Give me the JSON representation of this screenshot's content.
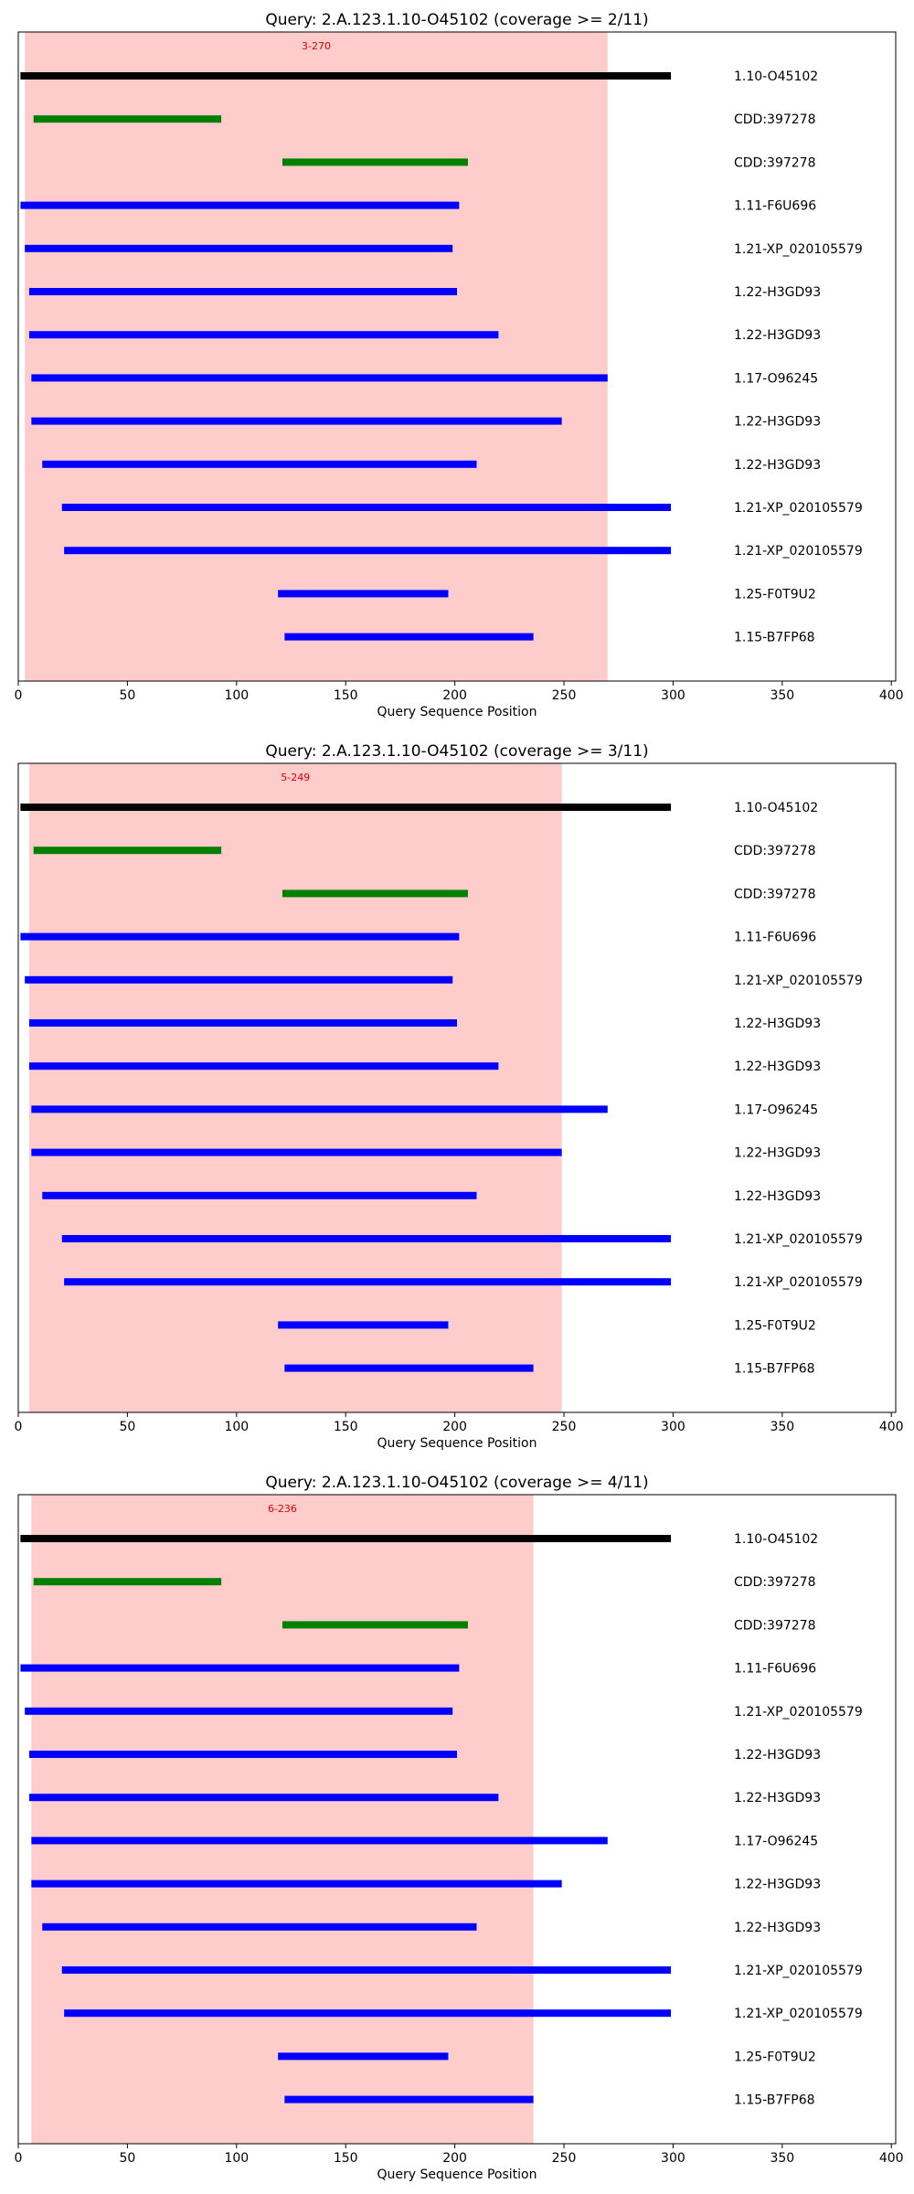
{
  "chart_data": [
    {
      "type": "bar",
      "orientation": "horizontal-range",
      "title": "Query: 2.A.123.1.10-O45102 (coverage >= 2/11)",
      "xlabel": "Query Sequence Position",
      "ylabel": "",
      "xlim": [
        0,
        402
      ],
      "xticks": [
        0,
        50,
        100,
        150,
        200,
        250,
        300,
        350,
        400
      ],
      "highlight": {
        "start": 3,
        "end": 270,
        "label": "3-270",
        "color": "#ff9999"
      },
      "segments": [
        {
          "label": "1.10-O45102",
          "start": 1,
          "end": 299,
          "color": "#000000"
        },
        {
          "label": "CDD:397278",
          "start": 7,
          "end": 93,
          "color": "#008000"
        },
        {
          "label": "CDD:397278",
          "start": 121,
          "end": 206,
          "color": "#008000"
        },
        {
          "label": "1.11-F6U696",
          "start": 1,
          "end": 202,
          "color": "#0000ff"
        },
        {
          "label": "1.21-XP_020105579",
          "start": 3,
          "end": 199,
          "color": "#0000ff"
        },
        {
          "label": "1.22-H3GD93",
          "start": 5,
          "end": 201,
          "color": "#0000ff"
        },
        {
          "label": "1.22-H3GD93",
          "start": 5,
          "end": 220,
          "color": "#0000ff"
        },
        {
          "label": "1.17-O96245",
          "start": 6,
          "end": 270,
          "color": "#0000ff"
        },
        {
          "label": "1.22-H3GD93",
          "start": 6,
          "end": 249,
          "color": "#0000ff"
        },
        {
          "label": "1.22-H3GD93",
          "start": 11,
          "end": 210,
          "color": "#0000ff"
        },
        {
          "label": "1.21-XP_020105579",
          "start": 20,
          "end": 299,
          "color": "#0000ff"
        },
        {
          "label": "1.21-XP_020105579",
          "start": 21,
          "end": 299,
          "color": "#0000ff"
        },
        {
          "label": "1.25-F0T9U2",
          "start": 119,
          "end": 197,
          "color": "#0000ff"
        },
        {
          "label": "1.15-B7FP68",
          "start": 122,
          "end": 236,
          "color": "#0000ff"
        }
      ]
    },
    {
      "type": "bar",
      "orientation": "horizontal-range",
      "title": "Query: 2.A.123.1.10-O45102 (coverage >= 3/11)",
      "xlabel": "Query Sequence Position",
      "ylabel": "",
      "xlim": [
        0,
        402
      ],
      "xticks": [
        0,
        50,
        100,
        150,
        200,
        250,
        300,
        350,
        400
      ],
      "highlight": {
        "start": 5,
        "end": 249,
        "label": "5-249",
        "color": "#ff9999"
      },
      "segments": [
        {
          "label": "1.10-O45102",
          "start": 1,
          "end": 299,
          "color": "#000000"
        },
        {
          "label": "CDD:397278",
          "start": 7,
          "end": 93,
          "color": "#008000"
        },
        {
          "label": "CDD:397278",
          "start": 121,
          "end": 206,
          "color": "#008000"
        },
        {
          "label": "1.11-F6U696",
          "start": 1,
          "end": 202,
          "color": "#0000ff"
        },
        {
          "label": "1.21-XP_020105579",
          "start": 3,
          "end": 199,
          "color": "#0000ff"
        },
        {
          "label": "1.22-H3GD93",
          "start": 5,
          "end": 201,
          "color": "#0000ff"
        },
        {
          "label": "1.22-H3GD93",
          "start": 5,
          "end": 220,
          "color": "#0000ff"
        },
        {
          "label": "1.17-O96245",
          "start": 6,
          "end": 270,
          "color": "#0000ff"
        },
        {
          "label": "1.22-H3GD93",
          "start": 6,
          "end": 249,
          "color": "#0000ff"
        },
        {
          "label": "1.22-H3GD93",
          "start": 11,
          "end": 210,
          "color": "#0000ff"
        },
        {
          "label": "1.21-XP_020105579",
          "start": 20,
          "end": 299,
          "color": "#0000ff"
        },
        {
          "label": "1.21-XP_020105579",
          "start": 21,
          "end": 299,
          "color": "#0000ff"
        },
        {
          "label": "1.25-F0T9U2",
          "start": 119,
          "end": 197,
          "color": "#0000ff"
        },
        {
          "label": "1.15-B7FP68",
          "start": 122,
          "end": 236,
          "color": "#0000ff"
        }
      ]
    },
    {
      "type": "bar",
      "orientation": "horizontal-range",
      "title": "Query: 2.A.123.1.10-O45102 (coverage >= 4/11)",
      "xlabel": "Query Sequence Position",
      "ylabel": "",
      "xlim": [
        0,
        402
      ],
      "xticks": [
        0,
        50,
        100,
        150,
        200,
        250,
        300,
        350,
        400
      ],
      "highlight": {
        "start": 6,
        "end": 236,
        "label": "6-236",
        "color": "#ff9999"
      },
      "segments": [
        {
          "label": "1.10-O45102",
          "start": 1,
          "end": 299,
          "color": "#000000"
        },
        {
          "label": "CDD:397278",
          "start": 7,
          "end": 93,
          "color": "#008000"
        },
        {
          "label": "CDD:397278",
          "start": 121,
          "end": 206,
          "color": "#008000"
        },
        {
          "label": "1.11-F6U696",
          "start": 1,
          "end": 202,
          "color": "#0000ff"
        },
        {
          "label": "1.21-XP_020105579",
          "start": 3,
          "end": 199,
          "color": "#0000ff"
        },
        {
          "label": "1.22-H3GD93",
          "start": 5,
          "end": 201,
          "color": "#0000ff"
        },
        {
          "label": "1.22-H3GD93",
          "start": 5,
          "end": 220,
          "color": "#0000ff"
        },
        {
          "label": "1.17-O96245",
          "start": 6,
          "end": 270,
          "color": "#0000ff"
        },
        {
          "label": "1.22-H3GD93",
          "start": 6,
          "end": 249,
          "color": "#0000ff"
        },
        {
          "label": "1.22-H3GD93",
          "start": 11,
          "end": 210,
          "color": "#0000ff"
        },
        {
          "label": "1.21-XP_020105579",
          "start": 20,
          "end": 299,
          "color": "#0000ff"
        },
        {
          "label": "1.21-XP_020105579",
          "start": 21,
          "end": 299,
          "color": "#0000ff"
        },
        {
          "label": "1.25-F0T9U2",
          "start": 119,
          "end": 197,
          "color": "#0000ff"
        },
        {
          "label": "1.15-B7FP68",
          "start": 122,
          "end": 236,
          "color": "#0000ff"
        }
      ]
    }
  ]
}
